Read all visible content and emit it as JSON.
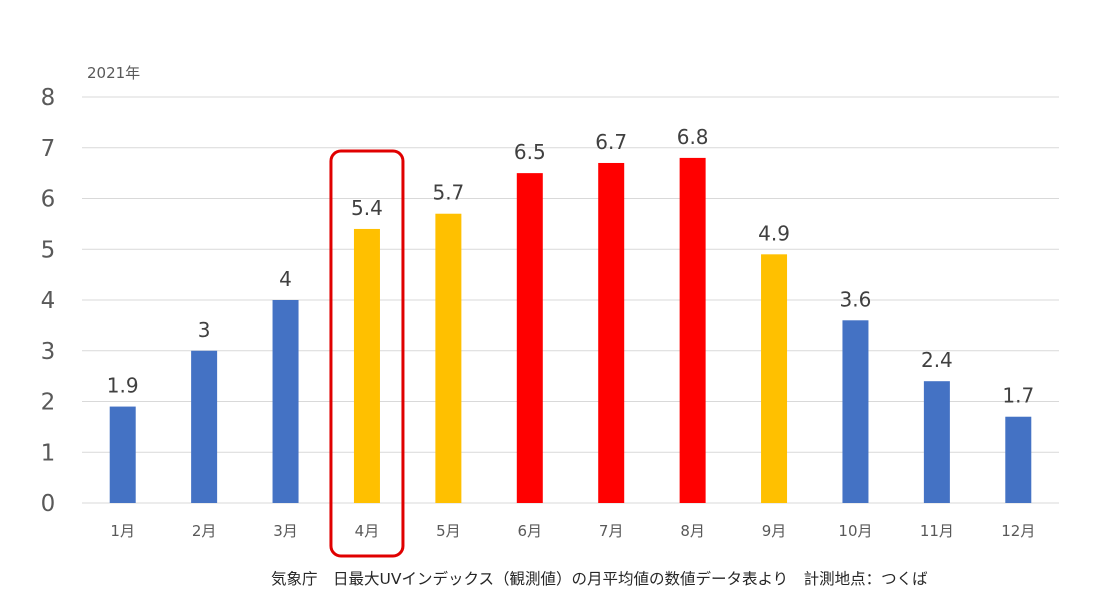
{
  "chart_data": {
    "type": "bar",
    "subtitle": "2021年",
    "categories": [
      "1月",
      "2月",
      "3月",
      "4月",
      "5月",
      "6月",
      "7月",
      "8月",
      "9月",
      "10月",
      "11月",
      "12月"
    ],
    "values": [
      1.9,
      3,
      4,
      5.4,
      5.7,
      6.5,
      6.7,
      6.8,
      4.9,
      3.6,
      2.4,
      1.7
    ],
    "data_labels": [
      "1.9",
      "3",
      "4",
      "5.4",
      "5.7",
      "6.5",
      "6.7",
      "6.8",
      "4.9",
      "3.6",
      "2.4",
      "1.7"
    ],
    "bar_colors": [
      "#4472C4",
      "#4472C4",
      "#4472C4",
      "#FFC000",
      "#FFC000",
      "#FF0000",
      "#FF0000",
      "#FF0000",
      "#FFC000",
      "#4472C4",
      "#4472C4",
      "#4472C4"
    ],
    "ylim": [
      0,
      8
    ],
    "yticks": [
      "0",
      "1",
      "2",
      "3",
      "4",
      "5",
      "6",
      "7",
      "8"
    ],
    "grid": true,
    "highlight_category": "4月",
    "highlight_color": "#E00000",
    "xlabel": "",
    "ylabel": ""
  },
  "source_note": "気象庁　日最大UVインデックス（観測値）の月平均値の数値データ表より　計測地点：つくば"
}
